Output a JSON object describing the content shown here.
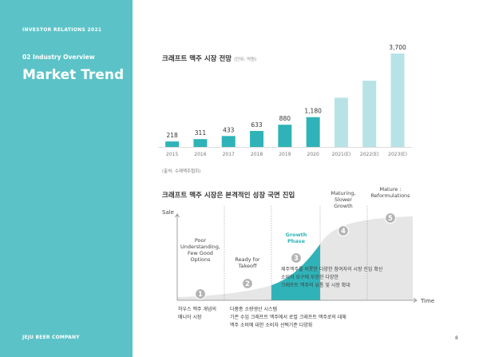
{
  "sidebar": {
    "top_label": "INVESTOR RELATIONS 2021",
    "section": "02 Industry Overview",
    "title": "Market Trend",
    "company": "JEJU BEER COMPANY"
  },
  "page_number": "8",
  "colors": {
    "accent": "#5bc3c7",
    "accent_dark": "#2fb3b8",
    "accent_light": "#b7e3e6",
    "curve_fill": "#e6e6e6"
  },
  "chart_data": [
    {
      "type": "bar",
      "title": "크래프트 맥주 시장 전망",
      "unit": "(단위: 억원)",
      "source": "(출처: 수제맥주협회)",
      "categories": [
        "2015",
        "2016",
        "2017",
        "2018",
        "2019",
        "2020",
        "2021(E)",
        "2022(E)",
        "2023(E)"
      ],
      "values": [
        218,
        311,
        433,
        633,
        880,
        1180,
        null,
        null,
        3700
      ],
      "value_labels": [
        "218",
        "311",
        "433",
        "633",
        "880",
        "1,180",
        "",
        "",
        "3,700"
      ],
      "estimated": [
        false,
        false,
        false,
        false,
        false,
        false,
        true,
        true,
        true
      ]
    },
    {
      "type": "area",
      "title": "크래프트 맥주 시장은 본격적인 성장 국면 진입",
      "ylabel": "Sale",
      "xlabel": "Time",
      "stages": [
        {
          "num": "1",
          "label": [
            "Poor",
            "Understanding,",
            "Few Good",
            "Options"
          ],
          "desc": [
            "하우스 맥주 개념의",
            "매니아 시장"
          ]
        },
        {
          "num": "2",
          "label": [
            "Ready for",
            "Takeoff"
          ],
          "desc": [
            "다품종 소량생산 시스템",
            "기존 수입 크래프트 맥주에서 로컬 크래프트 맥주로의 대체",
            "맥주 소비에 대한 소비자 선택기준 다양화"
          ]
        },
        {
          "num": "3",
          "label": [
            "Growth",
            "Phase"
          ],
          "desc": [
            "제주맥주를 비롯한 다양한 참여자의 시장 진입 확산",
            "소비자 요구에 부응한 다양한",
            "크래프트 맥주의 유통 및 시장 확대"
          ],
          "highlight": true
        },
        {
          "num": "4",
          "label": [
            "Maturing,",
            "Slower",
            "Growth"
          ],
          "desc": []
        },
        {
          "num": "5",
          "label": [
            "Mature :",
            "Reformulations"
          ],
          "desc": []
        }
      ]
    }
  ]
}
